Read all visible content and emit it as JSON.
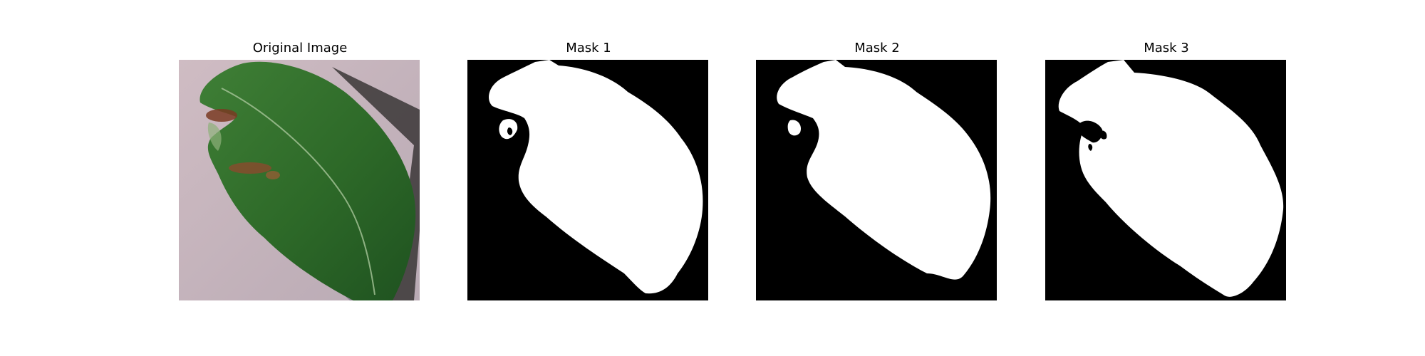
{
  "panels": [
    {
      "title": "Original Image"
    },
    {
      "title": "Mask 1"
    },
    {
      "title": "Mask 2"
    },
    {
      "title": "Mask 3"
    }
  ],
  "colors": {
    "background": "#ffffff",
    "mask_background": "#000000",
    "mask_foreground": "#ffffff",
    "leaf_green": "#2f6b2a",
    "surface_pink": "#c9b7bd"
  }
}
